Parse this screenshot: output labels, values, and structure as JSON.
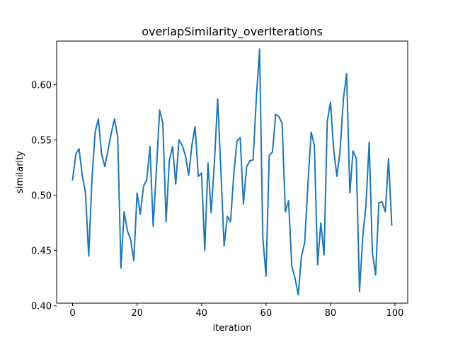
{
  "chart_data": {
    "type": "line",
    "title": "overlapSimilarity_overIterations",
    "xlabel": "iteration",
    "ylabel": "similarity",
    "xlim": [
      -4.95,
      103.95
    ],
    "ylim": [
      0.4024,
      0.6393
    ],
    "x_ticks": [
      0,
      20,
      40,
      60,
      80,
      100
    ],
    "x_tick_labels": [
      "0",
      "20",
      "40",
      "60",
      "80",
      "100"
    ],
    "y_ticks": [
      0.4,
      0.45,
      0.5,
      0.55,
      0.6
    ],
    "y_tick_labels": [
      "0.40",
      "0.45",
      "0.50",
      "0.55",
      "0.60"
    ],
    "grid": false,
    "series": [
      {
        "color": "#1f77b4",
        "x": [
          0,
          1,
          2,
          3,
          4,
          5,
          6,
          7,
          8,
          9,
          10,
          11,
          12,
          13,
          14,
          15,
          16,
          17,
          18,
          19,
          20,
          21,
          22,
          23,
          24,
          25,
          26,
          27,
          28,
          29,
          30,
          31,
          32,
          33,
          34,
          35,
          36,
          37,
          38,
          39,
          40,
          41,
          42,
          43,
          44,
          45,
          46,
          47,
          48,
          49,
          50,
          51,
          52,
          53,
          54,
          55,
          56,
          57,
          58,
          59,
          60,
          61,
          62,
          63,
          64,
          65,
          66,
          67,
          68,
          69,
          70,
          71,
          72,
          73,
          74,
          75,
          76,
          77,
          78,
          79,
          80,
          81,
          82,
          83,
          84,
          85,
          86,
          87,
          88,
          89,
          90,
          91,
          92,
          93,
          94,
          95,
          96,
          97,
          98,
          99
        ],
        "y": [
          0.514,
          0.537,
          0.542,
          0.518,
          0.502,
          0.445,
          0.514,
          0.557,
          0.569,
          0.537,
          0.526,
          0.541,
          0.556,
          0.569,
          0.553,
          0.434,
          0.485,
          0.468,
          0.46,
          0.441,
          0.502,
          0.483,
          0.508,
          0.514,
          0.544,
          0.472,
          0.523,
          0.577,
          0.565,
          0.476,
          0.531,
          0.544,
          0.51,
          0.55,
          0.545,
          0.536,
          0.518,
          0.545,
          0.562,
          0.517,
          0.52,
          0.45,
          0.529,
          0.484,
          0.53,
          0.587,
          0.522,
          0.454,
          0.481,
          0.476,
          0.519,
          0.549,
          0.552,
          0.492,
          0.526,
          0.531,
          0.532,
          0.588,
          0.632,
          0.462,
          0.427,
          0.536,
          0.539,
          0.573,
          0.571,
          0.565,
          0.485,
          0.495,
          0.436,
          0.425,
          0.41,
          0.445,
          0.457,
          0.51,
          0.557,
          0.545,
          0.437,
          0.475,
          0.446,
          0.567,
          0.584,
          0.541,
          0.517,
          0.541,
          0.587,
          0.61,
          0.502,
          0.54,
          0.533,
          0.413,
          0.462,
          0.491,
          0.548,
          0.448,
          0.428,
          0.493,
          0.494,
          0.485,
          0.533,
          0.473
        ]
      }
    ]
  }
}
